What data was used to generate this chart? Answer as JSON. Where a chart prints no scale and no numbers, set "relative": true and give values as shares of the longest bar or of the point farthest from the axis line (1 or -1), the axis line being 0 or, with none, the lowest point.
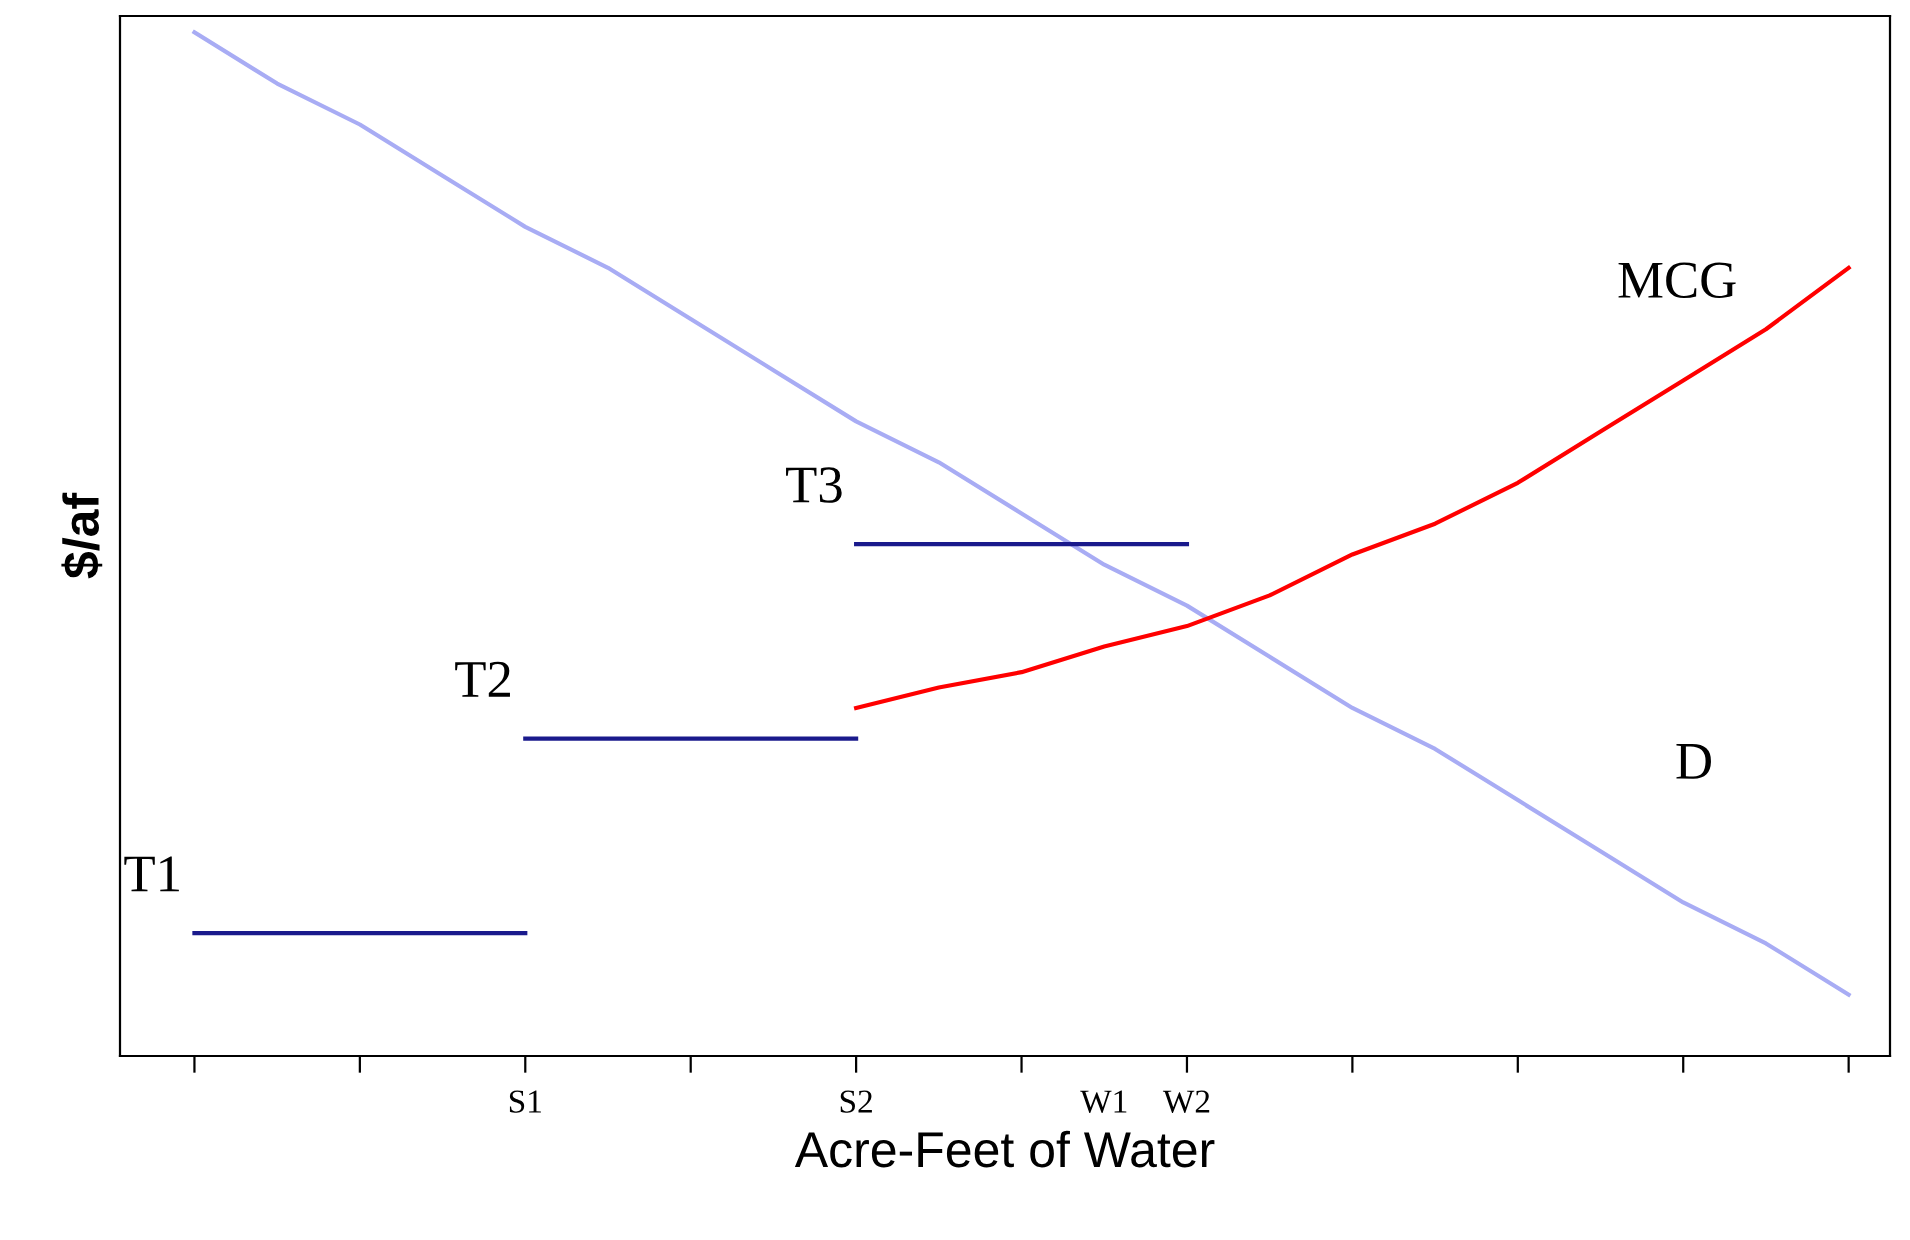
{
  "chart_data": {
    "type": "line",
    "relative": true,
    "xlabel": "Acre-Feet of Water",
    "ylabel": "$/af",
    "categories": [
      null,
      null,
      null,
      null,
      "S1",
      null,
      null,
      null,
      "S2",
      null,
      null,
      "W1",
      "W2",
      null,
      null,
      null,
      null,
      null,
      null,
      null,
      null
    ],
    "series": [
      {
        "name": "D",
        "color": "#a8acf4",
        "values": [
          1.0,
          0.95,
          0.91,
          0.86,
          0.81,
          0.77,
          0.72,
          0.67,
          0.62,
          0.58,
          0.53,
          0.48,
          0.44,
          0.39,
          0.34,
          0.3,
          0.25,
          0.2,
          0.15,
          0.11,
          0.06
        ]
      },
      {
        "name": "MCG",
        "color": "#ff0000",
        "values": [
          null,
          null,
          null,
          null,
          null,
          null,
          null,
          null,
          0.34,
          0.36,
          0.375,
          0.4,
          0.42,
          0.45,
          0.49,
          0.52,
          0.56,
          0.61,
          0.66,
          0.71,
          0.77
        ]
      },
      {
        "name": "T1",
        "color": "#1a1a8c",
        "values": [
          0.12,
          0.12,
          0.12,
          0.12,
          0.12,
          null,
          null,
          null,
          null,
          null,
          null,
          null,
          null,
          null,
          null,
          null,
          null,
          null,
          null,
          null,
          null
        ]
      },
      {
        "name": "T2",
        "color": "#1a1a8c",
        "values": [
          null,
          null,
          null,
          null,
          0.31,
          0.31,
          0.31,
          0.31,
          0.31,
          null,
          null,
          null,
          null,
          null,
          null,
          null,
          null,
          null,
          null,
          null,
          null
        ]
      },
      {
        "name": "T3",
        "color": "#1a1a8c",
        "values": [
          null,
          null,
          null,
          null,
          null,
          null,
          null,
          null,
          0.5,
          0.5,
          0.5,
          0.5,
          0.5,
          null,
          null,
          null,
          null,
          null,
          null,
          null,
          null
        ]
      }
    ]
  }
}
